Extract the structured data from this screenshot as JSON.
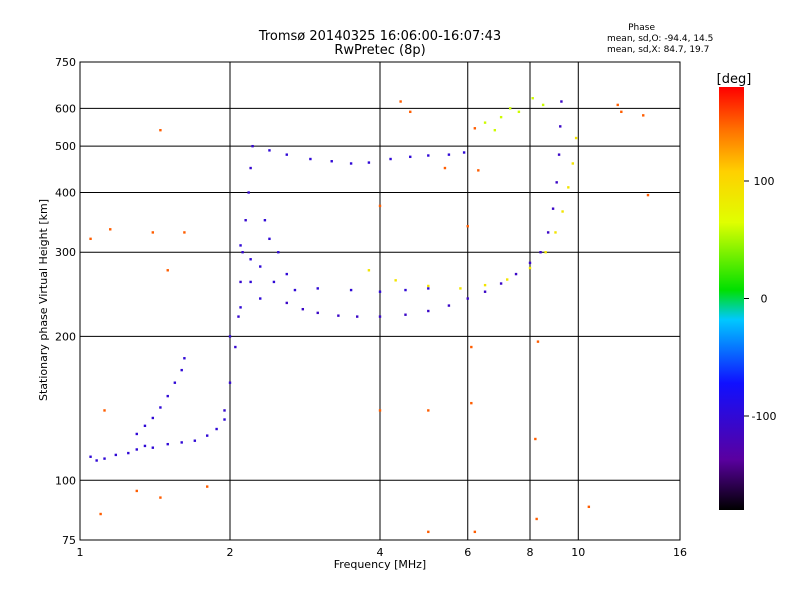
{
  "chart_data": {
    "type": "scatter",
    "title": "Tromsø 20140325 16:06:00-16:07:43",
    "subtitle": "RwPretec (8p)",
    "xlabel": "Frequency [MHz]",
    "ylabel": "Stationary phase Virtual Height [km]",
    "x_scale": "log",
    "y_scale": "log",
    "xlim": [
      1,
      16
    ],
    "ylim": [
      75,
      750
    ],
    "x_ticks": [
      "1",
      "2",
      "4",
      "6",
      "8",
      "10",
      "16"
    ],
    "y_ticks": [
      "75",
      "100",
      "200",
      "300",
      "400",
      "500",
      "600",
      "750"
    ],
    "grid": true,
    "stats": {
      "heading": "Phase",
      "line_o": "mean, sd,O: -94.4, 14.5",
      "line_x": "mean, sd,X:  84.7, 19.7"
    },
    "colorbar": {
      "label": "[deg]",
      "ticks": [
        "100",
        "0",
        "-100"
      ],
      "range": [
        -180,
        180
      ]
    },
    "series": [
      {
        "trace": "low-E",
        "phase": -100,
        "points": [
          [
            1.05,
            112
          ],
          [
            1.08,
            110
          ],
          [
            1.12,
            111
          ],
          [
            1.18,
            113
          ],
          [
            1.25,
            114
          ],
          [
            1.3,
            116
          ],
          [
            1.35,
            118
          ],
          [
            1.4,
            117
          ],
          [
            1.5,
            119
          ],
          [
            1.6,
            120
          ],
          [
            1.7,
            121
          ],
          [
            1.8,
            124
          ],
          [
            1.88,
            128
          ],
          [
            1.95,
            134
          ]
        ]
      },
      {
        "trace": "E-spread-diag",
        "phase": -100,
        "points": [
          [
            1.3,
            125
          ],
          [
            1.35,
            130
          ],
          [
            1.4,
            135
          ],
          [
            1.45,
            142
          ],
          [
            1.5,
            150
          ],
          [
            1.55,
            160
          ],
          [
            1.6,
            170
          ],
          [
            1.62,
            180
          ]
        ]
      },
      {
        "trace": "F-cusp",
        "phase": -105,
        "points": [
          [
            1.95,
            140
          ],
          [
            2.0,
            160
          ],
          [
            2.05,
            190
          ],
          [
            2.08,
            220
          ],
          [
            2.1,
            260
          ],
          [
            2.12,
            300
          ],
          [
            2.15,
            350
          ],
          [
            2.18,
            400
          ],
          [
            2.2,
            450
          ],
          [
            2.22,
            500
          ]
        ]
      },
      {
        "trace": "F-spread",
        "phase": -100,
        "points": [
          [
            2.0,
            200
          ],
          [
            2.1,
            230
          ],
          [
            2.2,
            260
          ],
          [
            2.3,
            280
          ],
          [
            2.4,
            320
          ],
          [
            2.5,
            300
          ],
          [
            2.6,
            270
          ],
          [
            2.3,
            240
          ],
          [
            2.45,
            260
          ],
          [
            2.2,
            290
          ],
          [
            2.1,
            310
          ],
          [
            2.35,
            350
          ]
        ]
      },
      {
        "trace": "F-o-ray",
        "phase": -110,
        "points": [
          [
            2.6,
            235
          ],
          [
            2.8,
            228
          ],
          [
            3.0,
            224
          ],
          [
            3.3,
            221
          ],
          [
            3.6,
            220
          ],
          [
            4.0,
            220
          ],
          [
            4.5,
            222
          ],
          [
            5.0,
            226
          ],
          [
            5.5,
            232
          ],
          [
            6.0,
            240
          ],
          [
            6.5,
            248
          ],
          [
            7.0,
            258
          ],
          [
            7.5,
            270
          ],
          [
            8.0,
            285
          ],
          [
            8.4,
            300
          ],
          [
            8.7,
            330
          ],
          [
            8.9,
            370
          ],
          [
            9.05,
            420
          ],
          [
            9.15,
            480
          ],
          [
            9.2,
            550
          ],
          [
            9.25,
            620
          ]
        ]
      },
      {
        "trace": "F-upper",
        "phase": -100,
        "points": [
          [
            2.7,
            250
          ],
          [
            3.0,
            252
          ],
          [
            3.5,
            250
          ],
          [
            4.0,
            248
          ],
          [
            4.5,
            250
          ],
          [
            5.0,
            252
          ]
        ]
      },
      {
        "trace": "F-x-ray",
        "phase": 90,
        "points": [
          [
            3.8,
            275
          ],
          [
            4.3,
            262
          ],
          [
            5.0,
            255
          ],
          [
            5.8,
            252
          ],
          [
            6.5,
            256
          ],
          [
            7.2,
            263
          ],
          [
            8.0,
            278
          ],
          [
            8.6,
            300
          ],
          [
            9.0,
            330
          ],
          [
            9.3,
            365
          ],
          [
            9.55,
            410
          ],
          [
            9.75,
            460
          ],
          [
            9.9,
            520
          ]
        ]
      },
      {
        "trace": "F2-trace",
        "phase": -100,
        "points": [
          [
            2.4,
            490
          ],
          [
            2.6,
            480
          ],
          [
            2.9,
            470
          ],
          [
            3.2,
            465
          ],
          [
            3.5,
            460
          ],
          [
            3.8,
            462
          ],
          [
            4.2,
            470
          ],
          [
            4.6,
            475
          ],
          [
            5.0,
            478
          ],
          [
            5.5,
            480
          ],
          [
            5.9,
            485
          ]
        ]
      },
      {
        "trace": "high-echoes",
        "phase": 60,
        "points": [
          [
            6.5,
            560
          ],
          [
            7.0,
            575
          ],
          [
            7.6,
            590
          ],
          [
            8.1,
            630
          ],
          [
            8.5,
            610
          ],
          [
            6.8,
            540
          ],
          [
            7.3,
            600
          ]
        ]
      },
      {
        "trace": "scattered",
        "phase": 150,
        "points": [
          [
            1.05,
            320
          ],
          [
            1.15,
            335
          ],
          [
            1.45,
            540
          ],
          [
            1.5,
            275
          ],
          [
            1.4,
            330
          ],
          [
            1.62,
            330
          ],
          [
            1.12,
            140
          ],
          [
            1.3,
            95
          ],
          [
            1.45,
            92
          ],
          [
            1.1,
            85
          ],
          [
            1.8,
            97
          ],
          [
            4.0,
            375
          ],
          [
            4.0,
            140
          ],
          [
            5.0,
            140
          ],
          [
            5.0,
            78
          ],
          [
            6.0,
            340
          ],
          [
            6.3,
            445
          ],
          [
            6.2,
            545
          ],
          [
            6.1,
            190
          ],
          [
            6.1,
            145
          ],
          [
            6.2,
            78
          ],
          [
            8.2,
            122
          ],
          [
            8.25,
            83
          ],
          [
            8.3,
            195
          ],
          [
            10.5,
            88
          ],
          [
            12.0,
            610
          ],
          [
            12.2,
            590
          ],
          [
            13.5,
            580
          ],
          [
            13.8,
            395
          ],
          [
            4.4,
            620
          ],
          [
            4.6,
            590
          ],
          [
            5.4,
            450
          ]
        ]
      }
    ]
  }
}
